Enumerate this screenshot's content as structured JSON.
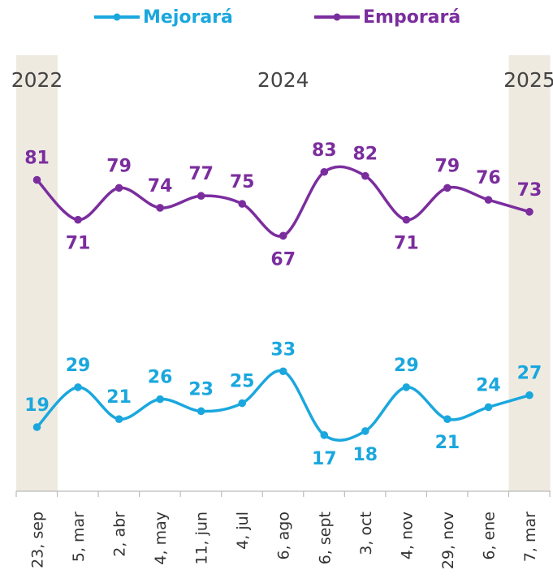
{
  "chart_data": {
    "type": "line",
    "categories": [
      "23, sep",
      "5, mar",
      "2, abr",
      "4, may",
      "11, jun",
      "4, jul",
      "6, ago",
      "6, sept",
      "3, oct",
      "4, nov",
      "29, nov",
      "6, ene",
      "7, mar"
    ],
    "year_labels": [
      {
        "text": "2022",
        "category_index": 0
      },
      {
        "text": "2024",
        "category_index": 6
      },
      {
        "text": "2025",
        "category_index": 12
      }
    ],
    "highlighted_categories": [
      0,
      12
    ],
    "series": [
      {
        "name": "Mejorará",
        "color": "#1AA7DE",
        "values": [
          19,
          29,
          21,
          26,
          23,
          25,
          33,
          17,
          18,
          29,
          21,
          24,
          27
        ]
      },
      {
        "name": "Emporará",
        "color": "#7B2D9E",
        "values": [
          81,
          71,
          79,
          74,
          77,
          75,
          67,
          83,
          82,
          71,
          79,
          76,
          73
        ]
      }
    ],
    "legend_position": "top",
    "grid": false,
    "highlight_color": "#EEEAE0",
    "axis_color": "#BBBBBB"
  }
}
